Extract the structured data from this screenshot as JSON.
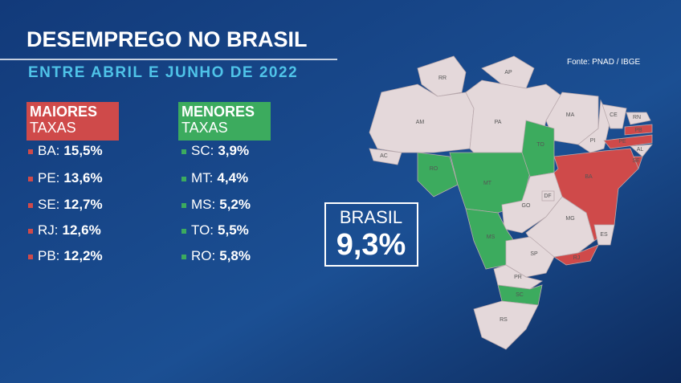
{
  "header": {
    "title": "DESEMPREGO NO BRASIL",
    "subtitle": "ENTRE ABRIL E JUNHO DE 2022",
    "source": "Fonte: PNAD / IBGE"
  },
  "highest": {
    "heading": [
      "MAIORES",
      "TAXAS"
    ],
    "items": [
      {
        "state": "BA:",
        "rate": "15,5%"
      },
      {
        "state": "PE:",
        "rate": "13,6%"
      },
      {
        "state": "SE:",
        "rate": "12,7%"
      },
      {
        "state": "RJ:",
        "rate": "12,6%"
      },
      {
        "state": "PB:",
        "rate": "12,2%"
      }
    ]
  },
  "lowest": {
    "heading": [
      "MENORES",
      "TAXAS"
    ],
    "items": [
      {
        "state": "SC:",
        "rate": "3,9%"
      },
      {
        "state": "MT:",
        "rate": "4,4%"
      },
      {
        "state": "MS:",
        "rate": "5,2%"
      },
      {
        "state": "TO:",
        "rate": "5,5%"
      },
      {
        "state": "RO:",
        "rate": "5,8%"
      }
    ]
  },
  "national": {
    "label": "BRASIL",
    "rate": "9,3%"
  },
  "map": {
    "states": [
      "RR",
      "AP",
      "AM",
      "PA",
      "MA",
      "PI",
      "CE",
      "RN",
      "PB",
      "PE",
      "AL",
      "SE",
      "BA",
      "AC",
      "RO",
      "MT",
      "TO",
      "GO",
      "DF",
      "MG",
      "ES",
      "MS",
      "SP",
      "RJ",
      "PR",
      "SC",
      "RS"
    ]
  }
}
